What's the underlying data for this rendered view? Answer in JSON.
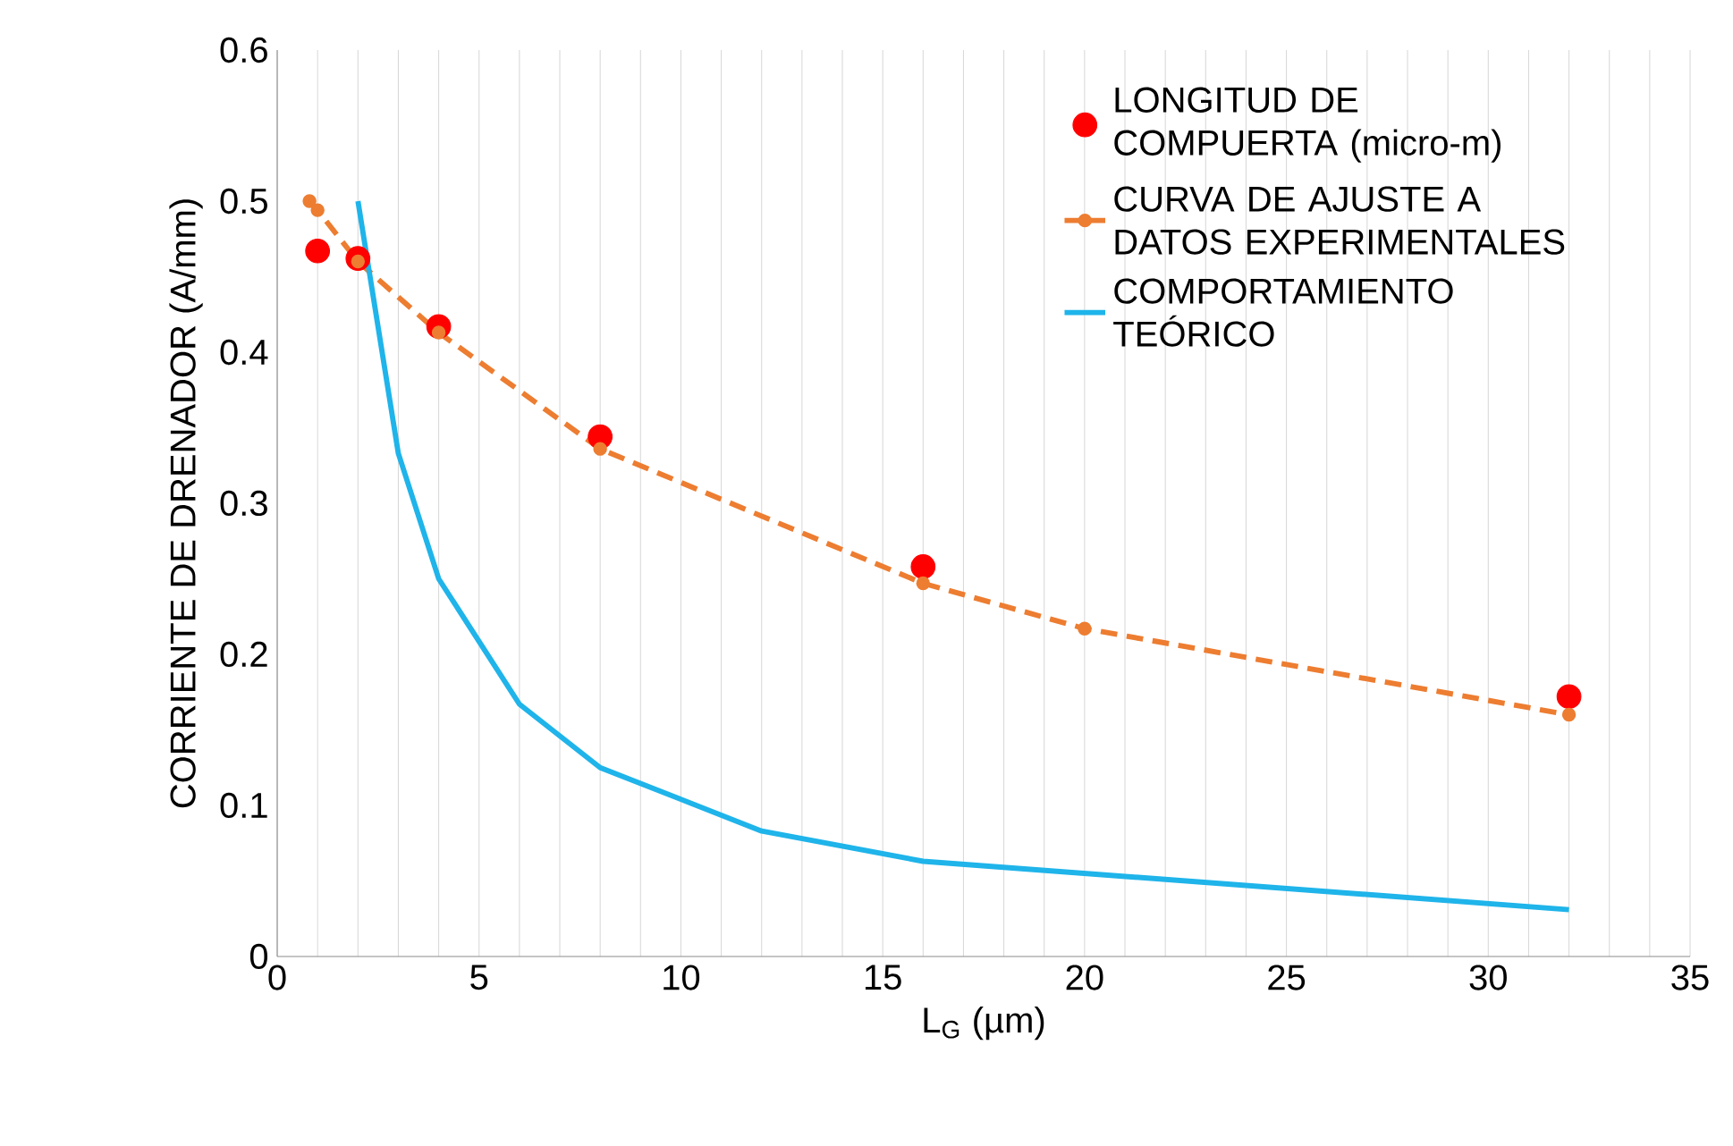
{
  "chart_data": {
    "type": "line",
    "xlabel": "L$_{G}$ (µm)",
    "ylabel": "CORRIENTE DE DRENADOR (A/mm)",
    "xlim": [
      0,
      35
    ],
    "ylim": [
      0,
      0.6
    ],
    "xticks": [
      0,
      {
        "value": 1,
        "label": null
      },
      {
        "value": 2,
        "label": null
      },
      {
        "value": 3,
        "label": null
      },
      {
        "value": 4,
        "label": null
      },
      5,
      {
        "value": 6,
        "label": null
      },
      {
        "value": 7,
        "label": null
      },
      {
        "value": 8,
        "label": null
      },
      {
        "value": 9,
        "label": null
      },
      10,
      {
        "value": 11,
        "label": null
      },
      {
        "value": 12,
        "label": null
      },
      {
        "value": 13,
        "label": null
      },
      {
        "value": 14,
        "label": null
      },
      15,
      {
        "value": 16,
        "label": null
      },
      {
        "value": 17,
        "label": null
      },
      {
        "value": 18,
        "label": null
      },
      {
        "value": 19,
        "label": null
      },
      20,
      {
        "value": 21,
        "label": null
      },
      {
        "value": 22,
        "label": null
      },
      {
        "value": 23,
        "label": null
      },
      {
        "value": 24,
        "label": null
      },
      25,
      {
        "value": 26,
        "label": null
      },
      {
        "value": 27,
        "label": null
      },
      {
        "value": 28,
        "label": null
      },
      {
        "value": 29,
        "label": null
      },
      30,
      {
        "value": 31,
        "label": null
      },
      {
        "value": 32,
        "label": null
      },
      {
        "value": 33,
        "label": null
      },
      {
        "value": 34,
        "label": null
      },
      35
    ],
    "yticks": [
      0,
      0.1,
      0.2,
      0.3,
      0.4,
      0.5,
      0.6
    ],
    "grid": "x",
    "legend": "top right",
    "series": [
      {
        "name": "LONGITUD DE COMPUERTA (micro-m)",
        "type": "scatter",
        "marker": "circle",
        "color": "#ff0000",
        "x": [
          1,
          2,
          4,
          8,
          16,
          32
        ],
        "values": [
          0.467,
          0.462,
          0.417,
          0.344,
          0.258,
          0.172
        ]
      },
      {
        "name": "CURVA DE AJUSTE A DATOS EXPERIMENTALES",
        "type": "line",
        "line_style": "dashed",
        "marker": "circle",
        "color": "#ed7d31",
        "x": [
          0.8,
          1,
          2,
          4,
          8,
          16,
          20,
          32
        ],
        "values": [
          0.5,
          0.494,
          0.46,
          0.413,
          0.336,
          0.247,
          0.217,
          0.16
        ]
      },
      {
        "name": "COMPORTAMIENTO TEÓRICO",
        "line_style": "solid",
        "marker": "none",
        "color": "#1fb4ea",
        "x": [
          2,
          3,
          4,
          6,
          8,
          12,
          16,
          32
        ],
        "values": [
          0.5,
          0.333,
          0.25,
          0.167,
          0.125,
          0.083,
          0.063,
          0.031
        ]
      }
    ]
  }
}
